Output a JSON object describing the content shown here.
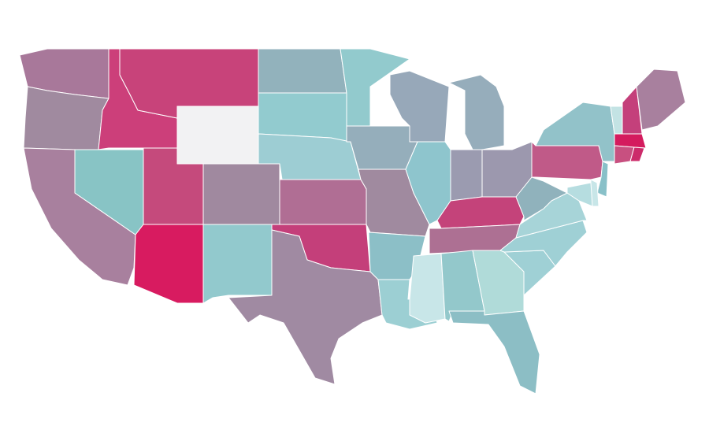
{
  "map": {
    "regions": [
      {
        "color": "#a8789a"
      },
      {
        "color": "#a08a9f"
      },
      {
        "color": "#a8809e"
      },
      {
        "color": "#88c4c5"
      },
      {
        "color": "#cc3f7a"
      },
      {
        "color": "#c8437a"
      },
      {
        "color": "#f2f2f3"
      },
      {
        "color": "#c54a7c"
      },
      {
        "color": "#a0899f"
      },
      {
        "color": "#d81b60"
      },
      {
        "color": "#92c9cd"
      },
      {
        "color": "#92b2bc"
      },
      {
        "color": "#92cbcf"
      },
      {
        "color": "#9dcdd3"
      },
      {
        "color": "#b06e94"
      },
      {
        "color": "#c43f7a"
      },
      {
        "color": "#a08aa2"
      },
      {
        "color": "#92cacd"
      },
      {
        "color": "#95aebb"
      },
      {
        "color": "#a08a9f"
      },
      {
        "color": "#8cbfc7"
      },
      {
        "color": "#9ccfd3"
      },
      {
        "color": "#97a8b9"
      },
      {
        "color": "#8ec5cd"
      },
      {
        "color": "#96adbb"
      },
      {
        "color": "#9b9bb0"
      },
      {
        "color": "#9c98ae"
      },
      {
        "color": "#c4437a"
      },
      {
        "color": "#ad7093"
      },
      {
        "color": "#c8e6e8"
      },
      {
        "color": "#93c8cb"
      },
      {
        "color": "#b0dbd9"
      },
      {
        "color": "#8cbec5"
      },
      {
        "color": "#9fd0d5"
      },
      {
        "color": "#9fd0d5"
      },
      {
        "color": "#a7d4d8"
      },
      {
        "color": "#90b2bc"
      },
      {
        "color": "#c05a88"
      },
      {
        "color": "#92c2c9"
      },
      {
        "color": "#c3e3e4"
      },
      {
        "color": "#c4407b"
      },
      {
        "color": "#a8809e"
      },
      {
        "color": "#d41b5e"
      },
      {
        "color": "#c85080"
      },
      {
        "color": "#cc2b6a"
      },
      {
        "color": "#88c0c8"
      },
      {
        "color": "#c8e6e8"
      },
      {
        "color": "#b6dde0"
      }
    ]
  }
}
